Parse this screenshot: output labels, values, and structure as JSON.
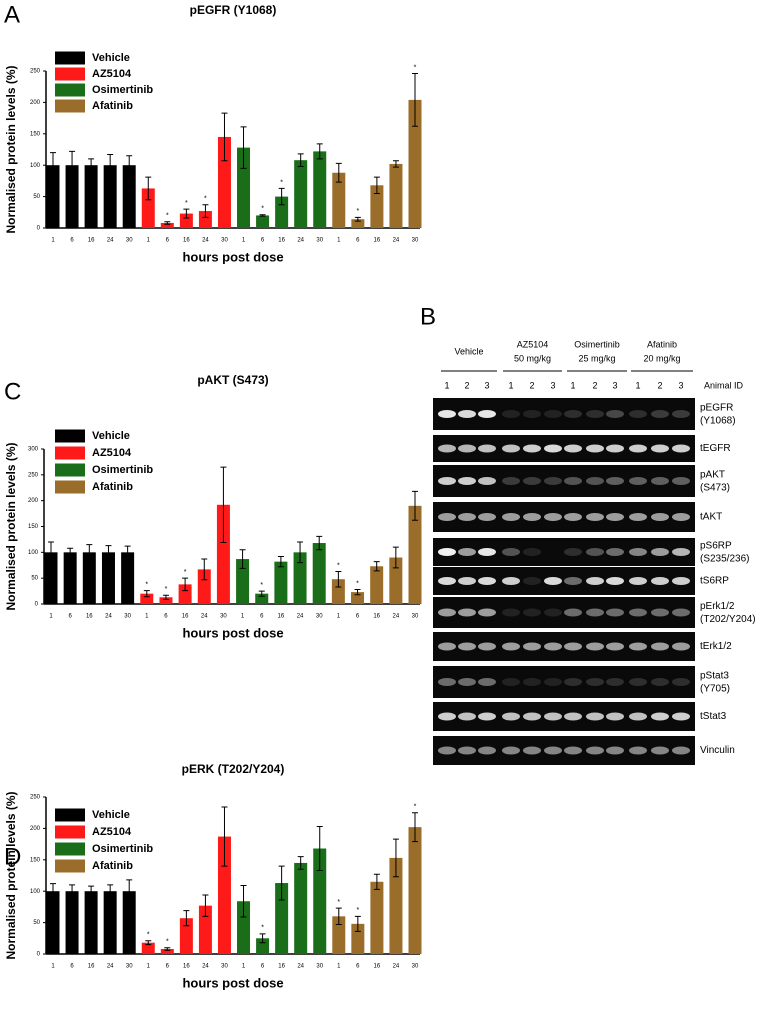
{
  "panels": [
    "A",
    "B",
    "C",
    "D"
  ],
  "chart_data": [
    {
      "type": "bar",
      "title": "pEGFR (Y1068)",
      "x_label": "hours post dose",
      "y_label": "Normalised protein levels (%)",
      "categories": [
        "1",
        "6",
        "16",
        "24",
        "30",
        "1",
        "6",
        "16",
        "24",
        "30",
        "1",
        "6",
        "16",
        "24",
        "30",
        "1",
        "6",
        "16",
        "24",
        "30"
      ],
      "ylim": [
        0,
        250
      ],
      "yticks": [
        0,
        50,
        100,
        150,
        200,
        250
      ],
      "series": [
        {
          "name": "Vehicle",
          "color": "#000000",
          "values": [
            100,
            100,
            100,
            100,
            100,
            null,
            null,
            null,
            null,
            null,
            null,
            null,
            null,
            null,
            null,
            null,
            null,
            null,
            null,
            null
          ],
          "errors": [
            20,
            22,
            10,
            17,
            15,
            null,
            null,
            null,
            null,
            null,
            null,
            null,
            null,
            null,
            null,
            null,
            null,
            null,
            null,
            null
          ]
        },
        {
          "name": "AZ5104",
          "color": "#ff1a1a",
          "values": [
            null,
            null,
            null,
            null,
            null,
            63,
            8,
            23,
            27,
            145,
            null,
            null,
            null,
            null,
            null,
            null,
            null,
            null,
            null,
            null
          ],
          "errors": [
            null,
            null,
            null,
            null,
            null,
            18,
            2,
            7,
            10,
            38,
            null,
            null,
            null,
            null,
            null,
            null,
            null,
            null,
            null,
            null
          ]
        },
        {
          "name": "Osimertinib",
          "color": "#1a6e1a",
          "values": [
            null,
            null,
            null,
            null,
            null,
            null,
            null,
            null,
            null,
            null,
            128,
            20,
            50,
            108,
            122,
            null,
            null,
            null,
            null,
            null
          ],
          "errors": [
            null,
            null,
            null,
            null,
            null,
            null,
            null,
            null,
            null,
            null,
            33,
            1,
            13,
            10,
            12,
            null,
            null,
            null,
            null,
            null
          ]
        },
        {
          "name": "Afatinib",
          "color": "#9b6d2a",
          "values": [
            null,
            null,
            null,
            null,
            null,
            null,
            null,
            null,
            null,
            null,
            null,
            null,
            null,
            null,
            null,
            88,
            14,
            68,
            102,
            204
          ],
          "errors": [
            null,
            null,
            null,
            null,
            null,
            null,
            null,
            null,
            null,
            null,
            null,
            null,
            null,
            null,
            null,
            15,
            3,
            13,
            5,
            42
          ]
        }
      ],
      "significance": [
        null,
        null,
        null,
        null,
        null,
        null,
        "*",
        "*",
        "*",
        null,
        null,
        "*",
        "*",
        null,
        null,
        null,
        "*",
        null,
        null,
        "*"
      ]
    },
    {
      "type": "bar",
      "title": "pAKT (S473)",
      "x_label": "hours post dose",
      "y_label": "Normalised protein levels (%)",
      "categories": [
        "1",
        "6",
        "16",
        "24",
        "30",
        "1",
        "6",
        "16",
        "24",
        "30",
        "1",
        "6",
        "16",
        "24",
        "30",
        "1",
        "6",
        "16",
        "24",
        "30"
      ],
      "ylim": [
        0,
        300
      ],
      "yticks": [
        0,
        50,
        100,
        150,
        200,
        250,
        300
      ],
      "series": [
        {
          "name": "Vehicle",
          "color": "#000000",
          "values": [
            100,
            100,
            100,
            100,
            100,
            null,
            null,
            null,
            null,
            null,
            null,
            null,
            null,
            null,
            null,
            null,
            null,
            null,
            null,
            null
          ],
          "errors": [
            20,
            8,
            15,
            13,
            12,
            null,
            null,
            null,
            null,
            null,
            null,
            null,
            null,
            null,
            null,
            null,
            null,
            null,
            null,
            null
          ]
        },
        {
          "name": "AZ5104",
          "color": "#ff1a1a",
          "values": [
            null,
            null,
            null,
            null,
            null,
            20,
            13,
            38,
            67,
            192,
            null,
            null,
            null,
            null,
            null,
            null,
            null,
            null,
            null,
            null
          ],
          "errors": [
            null,
            null,
            null,
            null,
            null,
            6,
            4,
            12,
            20,
            73,
            null,
            null,
            null,
            null,
            null,
            null,
            null,
            null,
            null,
            null
          ]
        },
        {
          "name": "Osimertinib",
          "color": "#1a6e1a",
          "values": [
            null,
            null,
            null,
            null,
            null,
            null,
            null,
            null,
            null,
            null,
            87,
            20,
            82,
            100,
            118,
            null,
            null,
            null,
            null,
            null
          ],
          "errors": [
            null,
            null,
            null,
            null,
            null,
            null,
            null,
            null,
            null,
            null,
            18,
            5,
            10,
            20,
            13,
            null,
            null,
            null,
            null,
            null
          ]
        },
        {
          "name": "Afatinib",
          "color": "#9b6d2a",
          "values": [
            null,
            null,
            null,
            null,
            null,
            null,
            null,
            null,
            null,
            null,
            null,
            null,
            null,
            null,
            null,
            48,
            23,
            73,
            90,
            190
          ],
          "errors": [
            null,
            null,
            null,
            null,
            null,
            null,
            null,
            null,
            null,
            null,
            null,
            null,
            null,
            null,
            null,
            15,
            5,
            9,
            20,
            28
          ]
        }
      ],
      "significance": [
        null,
        null,
        null,
        null,
        null,
        "*",
        "*",
        "*",
        null,
        null,
        null,
        "*",
        null,
        null,
        null,
        "*",
        "*",
        null,
        null,
        null
      ]
    },
    {
      "type": "bar",
      "title": "pERK (T202/Y204)",
      "x_label": "hours post dose",
      "y_label": "Normalised protein levels (%)",
      "categories": [
        "1",
        "6",
        "16",
        "24",
        "30",
        "1",
        "6",
        "16",
        "24",
        "30",
        "1",
        "6",
        "16",
        "24",
        "30",
        "1",
        "6",
        "16",
        "24",
        "30"
      ],
      "ylim": [
        0,
        250
      ],
      "yticks": [
        0,
        50,
        100,
        150,
        200,
        250
      ],
      "series": [
        {
          "name": "Vehicle",
          "color": "#000000",
          "values": [
            100,
            100,
            100,
            100,
            100,
            null,
            null,
            null,
            null,
            null,
            null,
            null,
            null,
            null,
            null,
            null,
            null,
            null,
            null,
            null
          ],
          "errors": [
            12,
            10,
            8,
            10,
            18,
            null,
            null,
            null,
            null,
            null,
            null,
            null,
            null,
            null,
            null,
            null,
            null,
            null,
            null,
            null
          ]
        },
        {
          "name": "AZ5104",
          "color": "#ff1a1a",
          "values": [
            null,
            null,
            null,
            null,
            null,
            18,
            8,
            57,
            77,
            187,
            null,
            null,
            null,
            null,
            null,
            null,
            null,
            null,
            null,
            null
          ],
          "errors": [
            null,
            null,
            null,
            null,
            null,
            3,
            2,
            12,
            17,
            47,
            null,
            null,
            null,
            null,
            null,
            null,
            null,
            null,
            null,
            null
          ]
        },
        {
          "name": "Osimertinib",
          "color": "#1a6e1a",
          "values": [
            null,
            null,
            null,
            null,
            null,
            null,
            null,
            null,
            null,
            null,
            84,
            25,
            113,
            145,
            168,
            null,
            null,
            null,
            null,
            null
          ],
          "errors": [
            null,
            null,
            null,
            null,
            null,
            null,
            null,
            null,
            null,
            null,
            25,
            7,
            27,
            10,
            35,
            null,
            null,
            null,
            null,
            null
          ]
        },
        {
          "name": "Afatinib",
          "color": "#9b6d2a",
          "values": [
            null,
            null,
            null,
            null,
            null,
            null,
            null,
            null,
            null,
            null,
            null,
            null,
            null,
            null,
            null,
            60,
            48,
            115,
            153,
            202
          ],
          "errors": [
            null,
            null,
            null,
            null,
            null,
            null,
            null,
            null,
            null,
            null,
            null,
            null,
            null,
            null,
            null,
            13,
            12,
            12,
            30,
            23
          ]
        }
      ],
      "significance": [
        null,
        null,
        null,
        null,
        null,
        "*",
        "*",
        null,
        null,
        null,
        null,
        "*",
        null,
        null,
        null,
        "*",
        "*",
        null,
        null,
        "*"
      ]
    }
  ],
  "blot": {
    "groups": [
      {
        "name": "Vehicle"
      },
      {
        "name": "AZ5104",
        "dose": "50 mg/kg"
      },
      {
        "name": "Osimertinib",
        "dose": "25 mg/kg"
      },
      {
        "name": "Afatinib",
        "dose": "20 mg/kg"
      }
    ],
    "lanes": [
      "1",
      "2",
      "3",
      "1",
      "2",
      "3",
      "1",
      "2",
      "3",
      "1",
      "2",
      "3"
    ],
    "id_label": "Animal ID",
    "rows": [
      {
        "label": "pEGFR",
        "sub": "(Y1068)"
      },
      {
        "label": "tEGFR"
      },
      {
        "label": "pAKT",
        "sub": "(S473)"
      },
      {
        "label": "tAKT"
      },
      {
        "label": "pS6RP",
        "sub": "(S235/236)"
      },
      {
        "label": "tS6RP"
      },
      {
        "label": "pErk1/2",
        "sub": "(T202/Y204)"
      },
      {
        "label": "tErk1/2"
      },
      {
        "label": "pStat3",
        "sub": "(Y705)"
      },
      {
        "label": "tStat3"
      },
      {
        "label": "Vinculin"
      }
    ]
  }
}
